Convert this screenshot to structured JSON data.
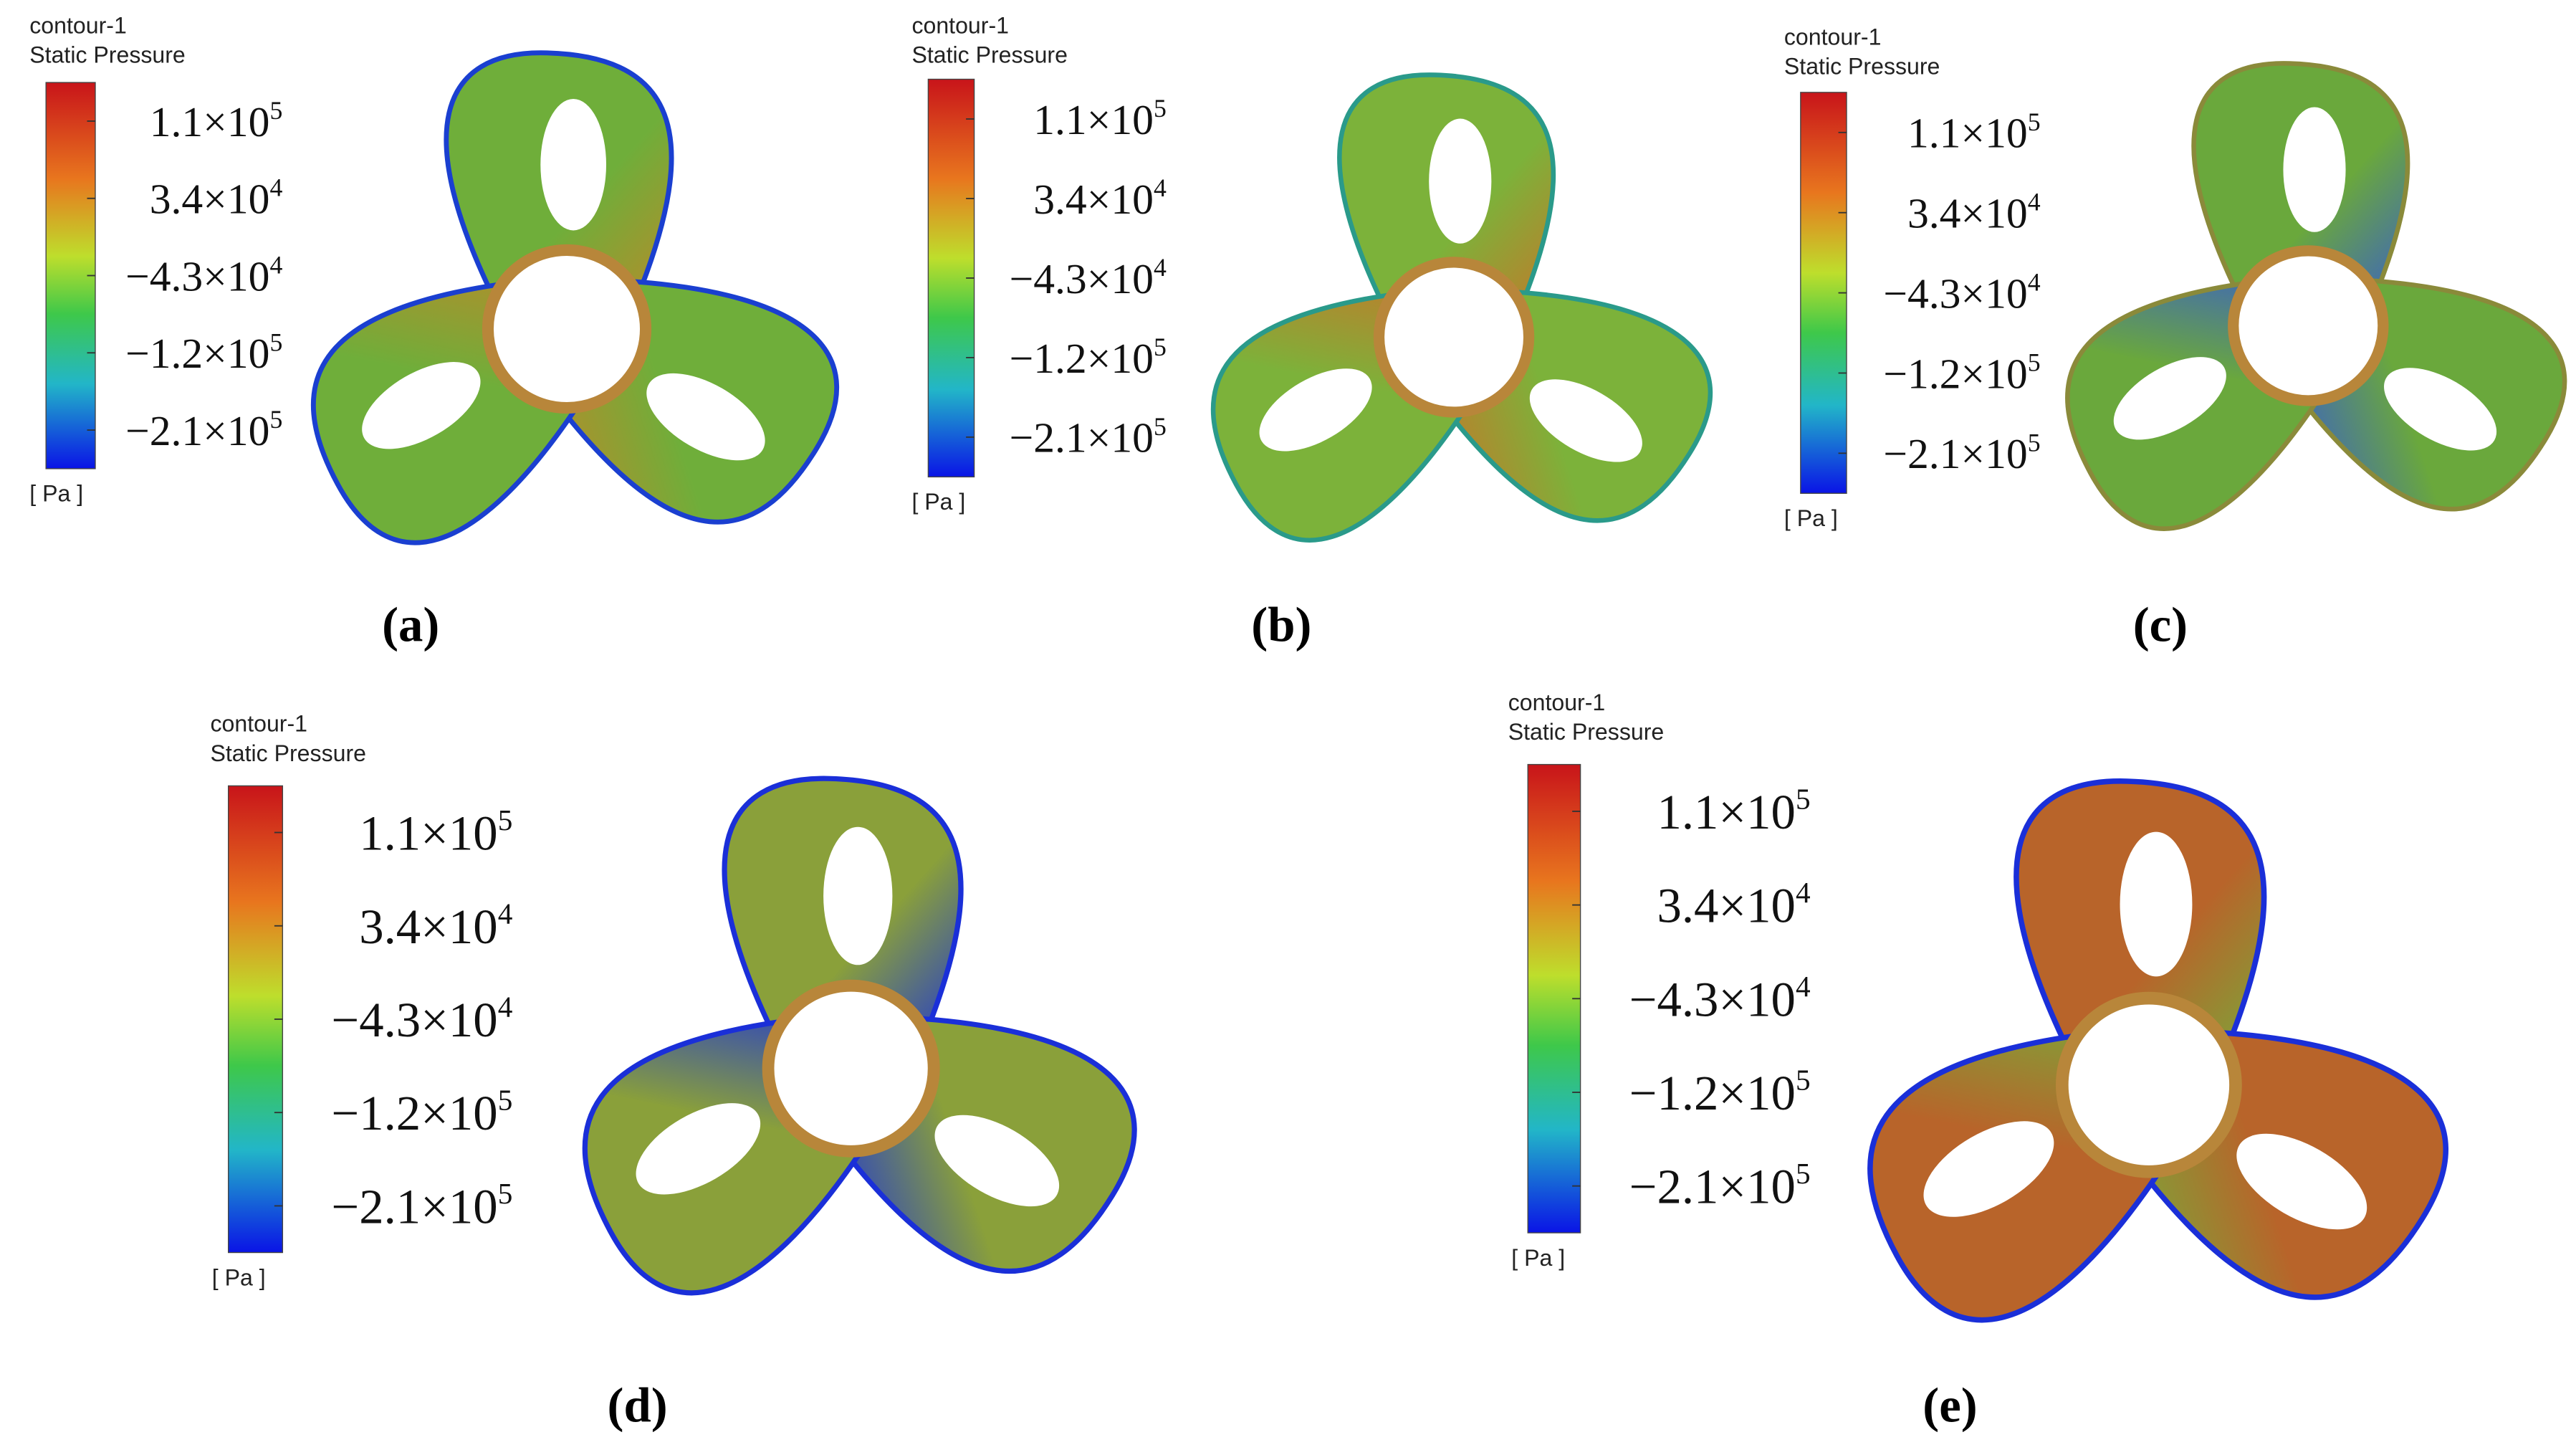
{
  "panels": [
    {
      "legend_title": "contour-1",
      "quantity": "Static Pressure",
      "ticks": [
        {
          "base": "1.1×10",
          "exp": "5"
        },
        {
          "base": "3.4×10",
          "exp": "4"
        },
        {
          "base": "−4.3×10",
          "exp": "4"
        },
        {
          "base": "−1.2×10",
          "exp": "5"
        },
        {
          "base": "−2.1×10",
          "exp": "5"
        }
      ],
      "unit": "[ Pa ]",
      "caption": "(a)"
    },
    {
      "legend_title": "contour-1",
      "quantity": "Static Pressure",
      "ticks": [
        {
          "base": "1.1×10",
          "exp": "5"
        },
        {
          "base": "3.4×10",
          "exp": "4"
        },
        {
          "base": "−4.3×10",
          "exp": "4"
        },
        {
          "base": "−1.2×10",
          "exp": "5"
        },
        {
          "base": "−2.1×10",
          "exp": "5"
        }
      ],
      "unit": "[ Pa ]",
      "caption": "(b)"
    },
    {
      "legend_title": "contour-1",
      "quantity": "Static Pressure",
      "ticks": [
        {
          "base": "1.1×10",
          "exp": "5"
        },
        {
          "base": "3.4×10",
          "exp": "4"
        },
        {
          "base": "−4.3×10",
          "exp": "4"
        },
        {
          "base": "−1.2×10",
          "exp": "5"
        },
        {
          "base": "−2.1×10",
          "exp": "5"
        }
      ],
      "unit": "[ Pa ]",
      "caption": "(c)"
    },
    {
      "legend_title": "contour-1",
      "quantity": "Static Pressure",
      "ticks": [
        {
          "base": "1.1×10",
          "exp": "5"
        },
        {
          "base": "3.4×10",
          "exp": "4"
        },
        {
          "base": "−4.3×10",
          "exp": "4"
        },
        {
          "base": "−1.2×10",
          "exp": "5"
        },
        {
          "base": "−2.1×10",
          "exp": "5"
        }
      ],
      "unit": "[ Pa ]",
      "caption": "(d)"
    },
    {
      "legend_title": "contour-1",
      "quantity": "Static Pressure",
      "ticks": [
        {
          "base": "1.1×10",
          "exp": "5"
        },
        {
          "base": "3.4×10",
          "exp": "4"
        },
        {
          "base": "−4.3×10",
          "exp": "4"
        },
        {
          "base": "−1.2×10",
          "exp": "5"
        },
        {
          "base": "−2.1×10",
          "exp": "5"
        }
      ],
      "unit": "[ Pa ]",
      "caption": "(e)"
    }
  ]
}
